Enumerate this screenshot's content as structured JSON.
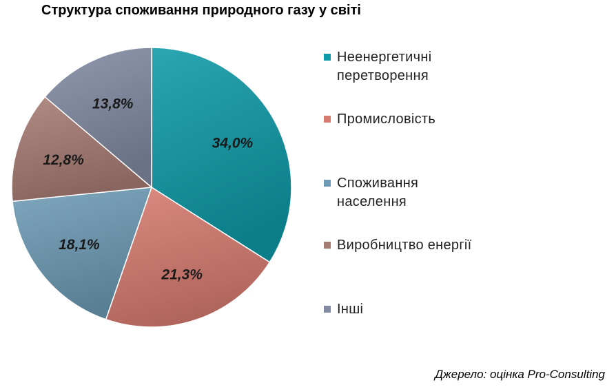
{
  "title": "Структура споживання природного газу у світі",
  "source": "Джерело: оцінка Pro-Consulting",
  "chart_data": {
    "type": "pie",
    "title": "Структура споживання природного газу у світі",
    "categories": [
      "Неенергетичні перетворення",
      "Промисловість",
      "Споживання населення",
      "Виробництво енергії",
      "Інші"
    ],
    "values": [
      34.0,
      21.3,
      18.1,
      12.8,
      13.8
    ],
    "data_labels": [
      "34,0%",
      "21,3%",
      "18,1%",
      "12,8%",
      "13,8%"
    ],
    "colors": [
      "#0e9aa7",
      "#d77b70",
      "#6d9bb5",
      "#a67b73",
      "#828ba3"
    ],
    "legend_placement": "right"
  },
  "legend": [
    {
      "lines": [
        "Неенергетичні",
        "перетворення"
      ],
      "color": "#0e9aa7"
    },
    {
      "lines": [
        "Промисловість"
      ],
      "color": "#d77b70"
    },
    {
      "lines": [
        "Споживання",
        "населення"
      ],
      "color": "#6d9bb5"
    },
    {
      "lines": [
        "Виробництво енергії"
      ],
      "color": "#a67b73"
    },
    {
      "lines": [
        "Інші"
      ],
      "color": "#828ba3"
    }
  ]
}
